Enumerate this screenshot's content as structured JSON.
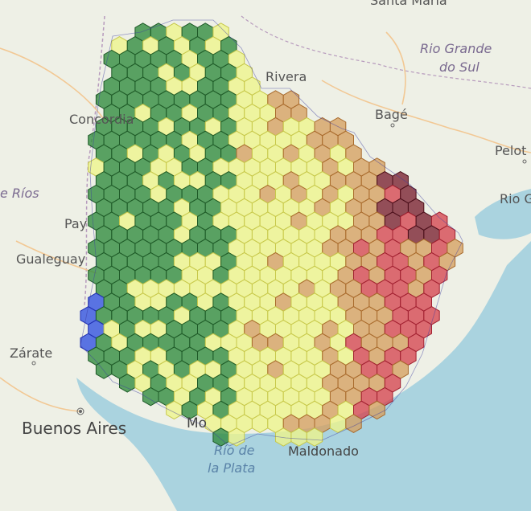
{
  "labels": {
    "santa_maria": "Santa Maria",
    "rio_grande_do_sul_1": "Rio Grande",
    "rio_grande_do_sul_2": "do Sul",
    "rivera": "Rivera",
    "bage": "Bagé",
    "concordia": "Concordia",
    "pelotas": "Pelot",
    "entre_rios": "e Ríos",
    "rio_grande": "Rio G",
    "paysandu": "Pay",
    "gualeguaychu": "Gualeguay",
    "zarate": "Zárate",
    "buenos_aires": "Buenos Aires",
    "montevideo": "Mo",
    "rio_de_la_plata_1": "Río de",
    "rio_de_la_plata_2": "la Plata",
    "maldonado": "Maldonado"
  },
  "colors": {
    "dark_green": "#2f8a3c",
    "light_yellow": "#eef58a",
    "orange": "#d6a060",
    "red": "#d64550",
    "dark_red": "#7a2030",
    "blue": "#3050e0"
  }
}
